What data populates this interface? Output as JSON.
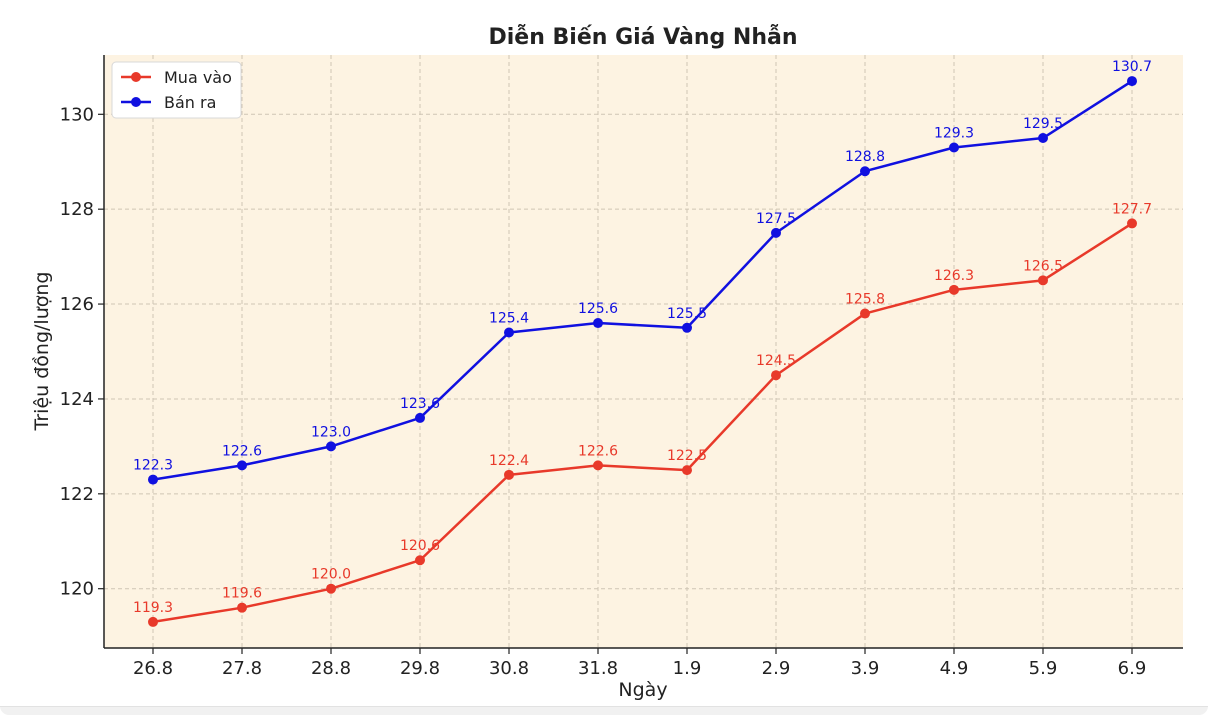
{
  "chart_data": {
    "type": "line",
    "title": "Diễn Biến Giá Vàng Nhẫn",
    "xlabel": "Ngày",
    "ylabel": "Triệu đồng/lượng",
    "categories": [
      "26.8",
      "27.8",
      "28.8",
      "29.8",
      "30.8",
      "31.8",
      "1.9",
      "2.9",
      "3.9",
      "4.9",
      "5.9",
      "6.9"
    ],
    "ylim": [
      118.75,
      131.25
    ],
    "yticks": [
      "120",
      "122",
      "124",
      "126",
      "128",
      "130"
    ],
    "series": [
      {
        "name": "Mua vào",
        "color": "#e8392a",
        "values": [
          119.3,
          119.6,
          120.0,
          120.6,
          122.4,
          122.6,
          122.5,
          124.5,
          125.8,
          126.3,
          126.5,
          127.7
        ],
        "labels": [
          "119.3",
          "119.6",
          "120.0",
          "120.6",
          "122.4",
          "122.6",
          "122.5",
          "124.5",
          "125.8",
          "126.3",
          "126.5",
          "127.7"
        ]
      },
      {
        "name": "Bán ra",
        "color": "#1010e0",
        "values": [
          122.3,
          122.6,
          123.0,
          123.6,
          125.4,
          125.6,
          125.5,
          127.5,
          128.8,
          129.3,
          129.5,
          130.7
        ],
        "labels": [
          "122.3",
          "122.6",
          "123.0",
          "123.6",
          "125.4",
          "125.6",
          "125.5",
          "127.5",
          "128.8",
          "129.3",
          "129.5",
          "130.7"
        ]
      }
    ],
    "grid": true,
    "legend": "top-left",
    "background": "#fdf3e2"
  }
}
